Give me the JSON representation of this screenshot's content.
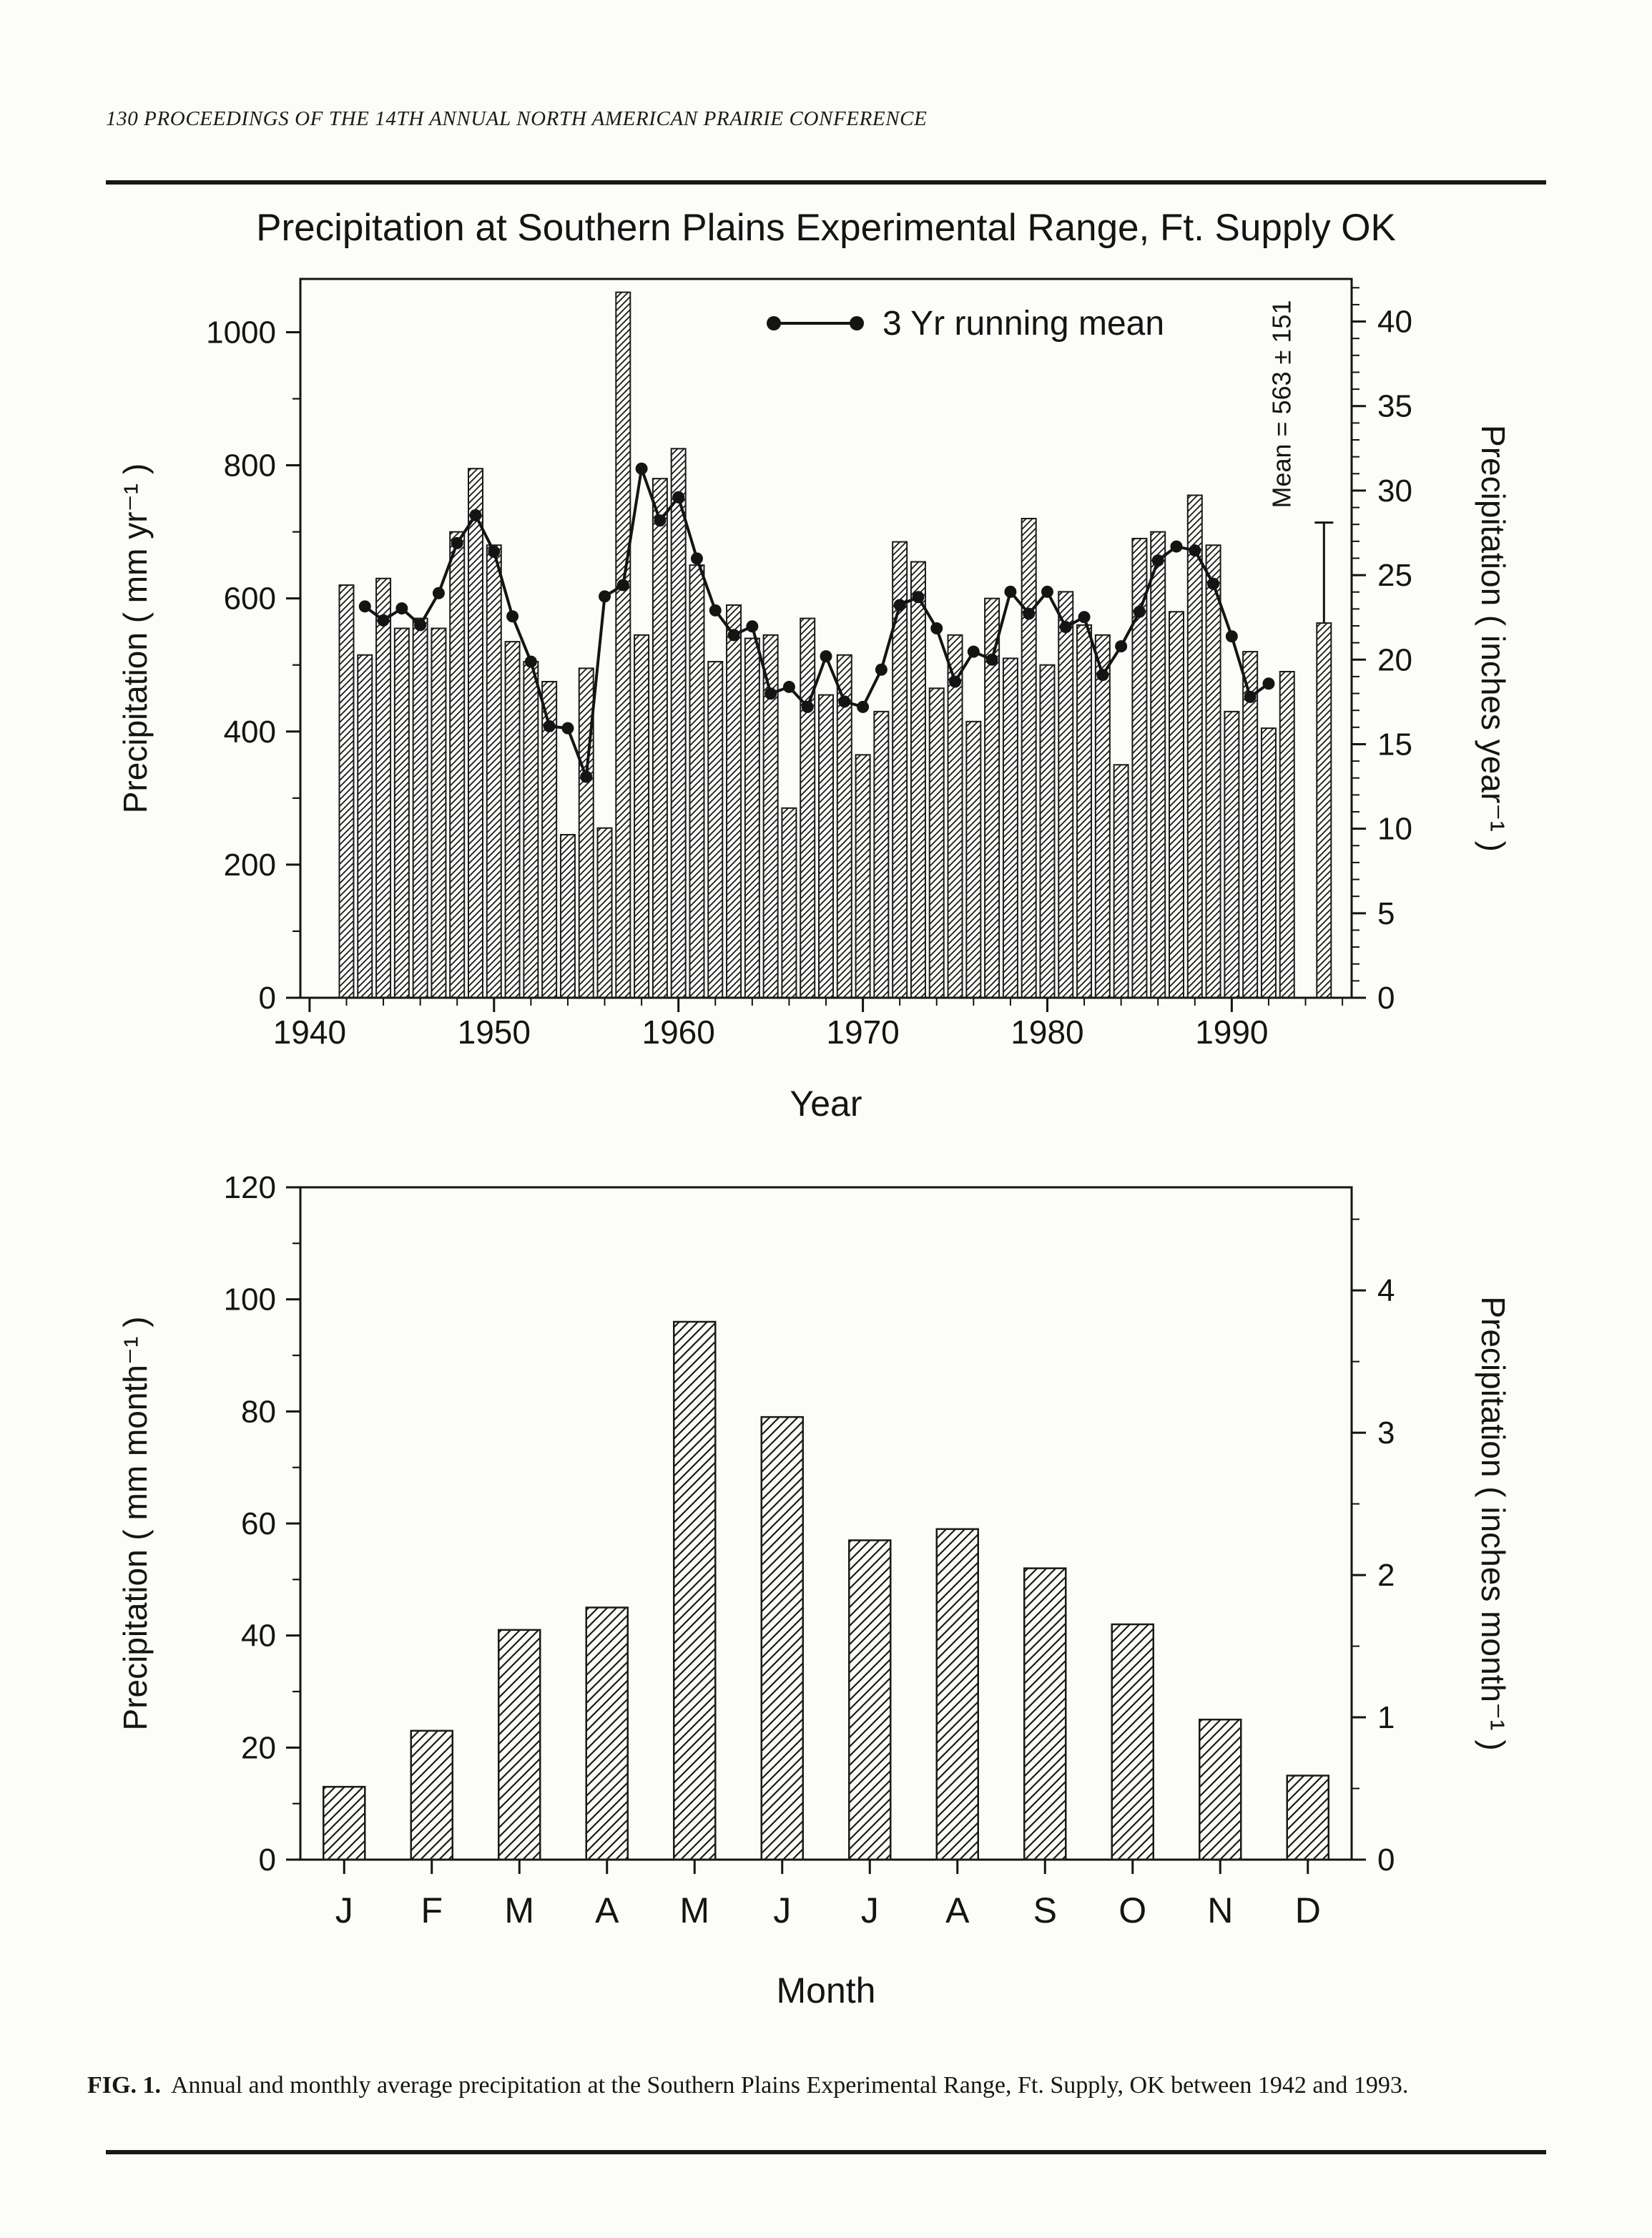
{
  "page": {
    "running_head": "130  PROCEEDINGS OF THE 14TH ANNUAL NORTH AMERICAN PRAIRIE CONFERENCE"
  },
  "figure_caption": {
    "label": "FIG. 1.",
    "text": "Annual and monthly average precipitation at the Southern Plains Experimental Range, Ft. Supply, OK between 1942 and 1993."
  },
  "chart_data": [
    {
      "id": "annual-precipitation",
      "type": "bar",
      "title": "Precipitation at Southern Plains Experimental Range, Ft. Supply OK",
      "xlabel": "Year",
      "ylabel_left": "Precipitation ( mm yr⁻¹ )",
      "ylabel_right": "Precipitation ( inches year⁻¹ )",
      "xlim": [
        1939.5,
        1996.5
      ],
      "ylim_mm": [
        0,
        1080
      ],
      "x_major_ticks": [
        1940,
        1950,
        1960,
        1970,
        1980,
        1990
      ],
      "y_major_ticks_mm": [
        0,
        200,
        400,
        600,
        800,
        1000
      ],
      "y_minor_step_mm": 100,
      "y_major_ticks_inches": [
        0,
        5,
        10,
        15,
        20,
        25,
        30,
        35,
        40
      ],
      "mm_per_inch": 25.4,
      "years": [
        1942,
        1943,
        1944,
        1945,
        1946,
        1947,
        1948,
        1949,
        1950,
        1951,
        1952,
        1953,
        1954,
        1955,
        1956,
        1957,
        1958,
        1959,
        1960,
        1961,
        1962,
        1963,
        1964,
        1965,
        1966,
        1967,
        1968,
        1969,
        1970,
        1971,
        1972,
        1973,
        1974,
        1975,
        1976,
        1977,
        1978,
        1979,
        1980,
        1981,
        1982,
        1983,
        1984,
        1985,
        1986,
        1987,
        1988,
        1989,
        1990,
        1991,
        1992,
        1993
      ],
      "values_mm": [
        620,
        515,
        630,
        555,
        570,
        555,
        700,
        795,
        680,
        535,
        505,
        475,
        245,
        495,
        255,
        1060,
        545,
        780,
        825,
        650,
        505,
        590,
        540,
        545,
        285,
        570,
        455,
        515,
        365,
        430,
        685,
        655,
        465,
        545,
        415,
        600,
        510,
        720,
        500,
        610,
        560,
        545,
        350,
        690,
        700,
        580,
        755,
        680,
        430,
        520,
        405,
        490
      ],
      "running_mean": {
        "legend_label": "3 Yr running mean",
        "years": [
          1943,
          1944,
          1945,
          1946,
          1947,
          1948,
          1949,
          1950,
          1951,
          1952,
          1953,
          1954,
          1955,
          1956,
          1957,
          1958,
          1959,
          1960,
          1961,
          1962,
          1963,
          1964,
          1965,
          1966,
          1967,
          1968,
          1969,
          1970,
          1971,
          1972,
          1973,
          1974,
          1975,
          1976,
          1977,
          1978,
          1979,
          1980,
          1981,
          1982,
          1983,
          1984,
          1985,
          1986,
          1987,
          1988,
          1989,
          1990,
          1991,
          1992
        ],
        "values_mm": [
          588,
          567,
          585,
          560,
          608,
          683,
          725,
          670,
          573,
          505,
          408,
          405,
          332,
          603,
          620,
          795,
          717,
          752,
          660,
          582,
          545,
          558,
          457,
          467,
          437,
          513,
          445,
          437,
          493,
          590,
          602,
          555,
          475,
          520,
          508,
          610,
          577,
          610,
          557,
          572,
          485,
          528,
          580,
          657,
          678,
          672,
          622,
          543,
          452,
          472
        ]
      },
      "summary": {
        "annotation": "Mean = 563 ± 151",
        "mean_mm": 563,
        "sd_mm": 151,
        "bar_x": 1995
      }
    },
    {
      "id": "monthly-precipitation",
      "type": "bar",
      "xlabel": "Month",
      "ylabel_left": "Precipitation ( mm month⁻¹ )",
      "ylabel_right": "Precipitation ( inches month⁻¹ )",
      "categories": [
        "J",
        "F",
        "M",
        "A",
        "M",
        "J",
        "J",
        "A",
        "S",
        "O",
        "N",
        "D"
      ],
      "values_mm": [
        13,
        23,
        41,
        45,
        96,
        79,
        57,
        59,
        52,
        42,
        25,
        15
      ],
      "ylim_mm": [
        0,
        120
      ],
      "y_major_ticks_mm": [
        0,
        20,
        40,
        60,
        80,
        100,
        120
      ],
      "y_minor_step_mm": 10,
      "y_major_ticks_inches": [
        0,
        1,
        2,
        3,
        4
      ],
      "mm_per_inch": 25.4
    }
  ]
}
